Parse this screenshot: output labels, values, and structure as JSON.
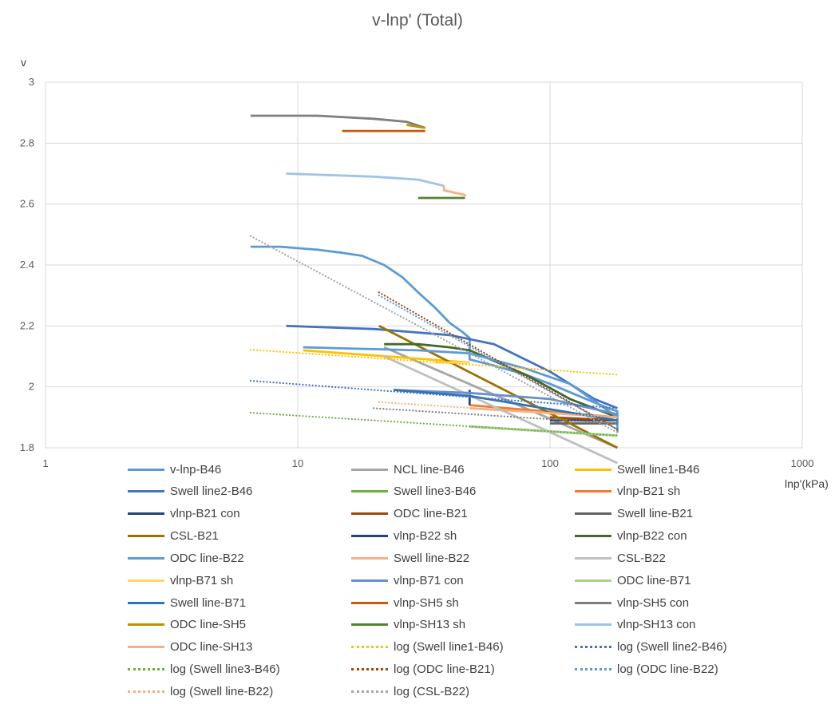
{
  "chart_data": {
    "type": "line",
    "title": "v-lnp' (Total)",
    "ylabel": "v",
    "xlabel": "lnp'(kPa)",
    "x_scale": "log",
    "xlim": [
      1,
      1000
    ],
    "ylim": [
      1.8,
      3.0
    ],
    "x_ticks": [
      "1",
      "10",
      "100",
      "1000"
    ],
    "y_ticks": [
      "1.8",
      "2",
      "2.2",
      "2.4",
      "2.6",
      "2.8",
      "3"
    ],
    "grid": true,
    "legend_position": "bottom",
    "series": [
      {
        "name": "v-lnp-B46",
        "color": "#5b9bd5",
        "style": "solid",
        "points": [
          [
            6.5,
            2.46
          ],
          [
            8.5,
            2.46
          ],
          [
            12,
            2.45
          ],
          [
            15,
            2.44
          ],
          [
            18,
            2.43
          ],
          [
            22,
            2.4
          ],
          [
            26,
            2.36
          ],
          [
            30,
            2.31
          ],
          [
            35,
            2.26
          ],
          [
            40,
            2.21
          ],
          [
            45,
            2.18
          ],
          [
            48,
            2.16
          ],
          [
            48,
            2.09
          ],
          [
            60,
            2.07
          ],
          [
            80,
            2.04
          ],
          [
            100,
            2.01
          ],
          [
            130,
            1.97
          ],
          [
            170,
            1.93
          ],
          [
            185,
            1.92
          ],
          [
            185,
            1.85
          ]
        ]
      },
      {
        "name": "NCL line-B46",
        "color": "#a5a5a5",
        "style": "solid",
        "points": [
          [
            22,
            2.13
          ],
          [
            185,
            1.8
          ]
        ]
      },
      {
        "name": "Swell line1-B46",
        "color": "#ffc000",
        "style": "solid",
        "points": [
          [
            10.5,
            2.12
          ],
          [
            48,
            2.08
          ]
        ]
      },
      {
        "name": "Swell line2-B46",
        "color": "#4472c4",
        "style": "solid",
        "points": [
          [
            9,
            2.2
          ],
          [
            20,
            2.19
          ],
          [
            40,
            2.17
          ],
          [
            60,
            2.14
          ],
          [
            100,
            2.05
          ],
          [
            150,
            1.96
          ],
          [
            185,
            1.93
          ]
        ]
      },
      {
        "name": "Swell line3-B46",
        "color": "#70ad47",
        "style": "solid",
        "points": [
          [
            48,
            1.87
          ],
          [
            185,
            1.84
          ]
        ]
      },
      {
        "name": "vlnp-B21 sh",
        "color": "#ed7d31",
        "style": "solid",
        "points": [
          [
            48,
            1.94
          ],
          [
            185,
            1.9
          ]
        ]
      },
      {
        "name": "vlnp-B21 con",
        "color": "#264478",
        "style": "solid",
        "points": [
          [
            100,
            1.89
          ],
          [
            185,
            1.89
          ]
        ]
      },
      {
        "name": "ODC line-B21",
        "color": "#9e480e",
        "style": "solid",
        "points": [
          [
            100,
            1.9
          ],
          [
            185,
            1.89
          ]
        ]
      },
      {
        "name": "Swell line-B21",
        "color": "#636363",
        "style": "solid",
        "points": [
          [
            100,
            1.88
          ],
          [
            185,
            1.88
          ]
        ]
      },
      {
        "name": "CSL-B21",
        "color": "#997300",
        "style": "solid",
        "points": [
          [
            21,
            2.2
          ],
          [
            185,
            1.8
          ]
        ]
      },
      {
        "name": "vlnp-B22 sh",
        "color": "#264478",
        "style": "solid",
        "points": [
          [
            48,
            1.99
          ],
          [
            48,
            1.94
          ]
        ]
      },
      {
        "name": "vlnp-B22 con",
        "color": "#43682b",
        "style": "solid",
        "points": [
          [
            22,
            2.14
          ],
          [
            30,
            2.14
          ],
          [
            40,
            2.13
          ],
          [
            48,
            2.12
          ],
          [
            80,
            2.04
          ],
          [
            120,
            1.96
          ],
          [
            185,
            1.9
          ]
        ]
      },
      {
        "name": "ODC line-B22",
        "color": "#5b9bd5",
        "style": "solid",
        "points": [
          [
            10.5,
            2.13
          ],
          [
            30,
            2.12
          ],
          [
            48,
            2.11
          ],
          [
            80,
            2.06
          ],
          [
            120,
            2.01
          ],
          [
            185,
            1.9
          ]
        ]
      },
      {
        "name": "Swell line-B22",
        "color": "#f4b183",
        "style": "solid",
        "points": [
          [
            48,
            1.93
          ],
          [
            185,
            1.9
          ]
        ]
      },
      {
        "name": "CSL-B22",
        "color": "#bfbfbf",
        "style": "solid",
        "points": [
          [
            22,
            2.1
          ],
          [
            185,
            1.75
          ]
        ]
      },
      {
        "name": "vlnp-B71 sh",
        "color": "#ffd966",
        "style": "solid",
        "points": [
          [
            35,
            2.08
          ],
          [
            48,
            2.08
          ]
        ]
      },
      {
        "name": "vlnp-B71 con",
        "color": "#698ed0",
        "style": "solid",
        "points": [
          [
            24,
            1.99
          ],
          [
            48,
            1.98
          ],
          [
            100,
            1.96
          ],
          [
            185,
            1.91
          ]
        ]
      },
      {
        "name": "ODC line-B71",
        "color": "#a9d18e",
        "style": "solid",
        "points": [
          [
            48,
            1.87
          ],
          [
            185,
            1.84
          ]
        ]
      },
      {
        "name": "Swell line-B71",
        "color": "#2e75b6",
        "style": "solid",
        "points": [
          [
            24,
            1.99
          ],
          [
            48,
            1.97
          ],
          [
            185,
            1.89
          ]
        ]
      },
      {
        "name": "vlnp-SH5 sh",
        "color": "#c55a11",
        "style": "solid",
        "points": [
          [
            15,
            2.84
          ],
          [
            32,
            2.84
          ]
        ]
      },
      {
        "name": "vlnp-SH5 con",
        "color": "#7f7f7f",
        "style": "solid",
        "points": [
          [
            6.5,
            2.89
          ],
          [
            12,
            2.89
          ],
          [
            20,
            2.88
          ],
          [
            27,
            2.87
          ],
          [
            32,
            2.85
          ]
        ]
      },
      {
        "name": "ODC line-SH5",
        "color": "#bf9000",
        "style": "solid",
        "points": [
          [
            27,
            2.86
          ],
          [
            32,
            2.85
          ]
        ]
      },
      {
        "name": "vlnp-SH13 sh",
        "color": "#548235",
        "style": "solid",
        "points": [
          [
            30,
            2.62
          ],
          [
            46,
            2.62
          ]
        ]
      },
      {
        "name": "vlnp-SH13 con",
        "color": "#9dc3e6",
        "style": "solid",
        "points": [
          [
            9,
            2.7
          ],
          [
            20,
            2.69
          ],
          [
            30,
            2.68
          ],
          [
            38,
            2.66
          ]
        ]
      },
      {
        "name": "ODC line-SH13",
        "color": "#f4b183",
        "style": "solid",
        "points": [
          [
            38,
            2.66
          ],
          [
            38,
            2.645
          ],
          [
            46,
            2.63
          ],
          [
            46,
            2.625
          ]
        ]
      },
      {
        "name": "log (Swell line1-B46)",
        "color": "#ffc000",
        "style": "dotted",
        "points": [
          [
            6.5,
            2.122
          ],
          [
            185,
            2.04
          ]
        ]
      },
      {
        "name": "log (Swell line2-B46)",
        "color": "#4472c4",
        "style": "dotted",
        "points": [
          [
            6.5,
            2.02
          ],
          [
            185,
            1.93
          ]
        ]
      },
      {
        "name": "log (Swell line3-B46)",
        "color": "#70ad47",
        "style": "dotted",
        "points": [
          [
            6.5,
            1.915
          ],
          [
            185,
            1.84
          ]
        ]
      },
      {
        "name": "log (ODC line-B21)",
        "color": "#9e480e",
        "style": "dotted",
        "points": [
          [
            21,
            2.31
          ],
          [
            185,
            1.86
          ]
        ]
      },
      {
        "name": "log (ODC line-B22)",
        "color": "#5b9bd5",
        "style": "dotted",
        "points": [
          [
            21,
            2.3
          ],
          [
            185,
            1.86
          ]
        ]
      },
      {
        "name": "log (Swell line-B22)",
        "color": "#f4b183",
        "style": "dotted",
        "points": [
          [
            21,
            1.95
          ],
          [
            185,
            1.9
          ]
        ]
      },
      {
        "name": "log (CSL-B22)",
        "color": "#a5a5a5",
        "style": "dotted",
        "points": [
          [
            6.5,
            2.495
          ],
          [
            185,
            1.85
          ]
        ]
      },
      {
        "name": "_gray_dotted_extra",
        "color": "#7f7f7f",
        "style": "dotted",
        "points": [
          [
            20,
            1.93
          ],
          [
            185,
            1.88
          ]
        ]
      }
    ],
    "legend": [
      "v-lnp-B46",
      "NCL line-B46",
      "Swell line1-B46",
      "Swell line2-B46",
      "Swell line3-B46",
      "vlnp-B21 sh",
      "vlnp-B21 con",
      "ODC line-B21",
      "Swell line-B21",
      "CSL-B21",
      "vlnp-B22 sh",
      "vlnp-B22 con",
      "ODC line-B22",
      "Swell line-B22",
      "CSL-B22",
      "vlnp-B71 sh",
      "vlnp-B71 con",
      "ODC line-B71",
      "Swell line-B71",
      "vlnp-SH5 sh",
      "vlnp-SH5 con",
      "ODC line-SH5",
      "vlnp-SH13 sh",
      "vlnp-SH13 con",
      "ODC line-SH13",
      "log (Swell line1-B46)",
      "log (Swell line2-B46)",
      "log (Swell line3-B46)",
      "log (ODC line-B21)",
      "log (ODC line-B22)",
      "log (Swell line-B22)",
      "log (CSL-B22)"
    ]
  }
}
